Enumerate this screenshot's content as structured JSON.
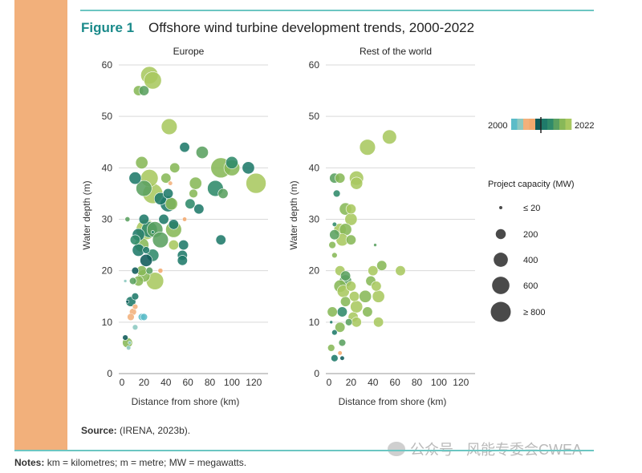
{
  "figure": {
    "label": "Figure 1",
    "title": "Offshore wind turbine development trends, 2000-2022"
  },
  "source": {
    "label": "Source:",
    "text": "(IRENA, 2023b)."
  },
  "notes": {
    "label": "Notes:",
    "text": "km = kilometres; m = metre; MW = megawatts."
  },
  "watermark": {
    "text": "公众号 · 风能专委会CWEA"
  },
  "colors": {
    "band": "#f2b07b",
    "rule": "#6cc6c2",
    "label": "#1a8a8a",
    "year_scale": [
      "#5bbcc8",
      "#8cc8c0",
      "#f2b07b",
      "#f2a86e",
      "#0f5a5a",
      "#1f7a6a",
      "#2f8a6a",
      "#5aa060",
      "#88b858",
      "#a8c860"
    ]
  },
  "legend": {
    "year_start": "2000",
    "year_end": "2022",
    "capacity_title": "Project capacity (MW)",
    "capacity_items": [
      {
        "label": "≤ 20",
        "mw": 20
      },
      {
        "label": "200",
        "mw": 200
      },
      {
        "label": "400",
        "mw": 400
      },
      {
        "label": "600",
        "mw": 600
      },
      {
        "label": "≥ 800",
        "mw": 800
      }
    ]
  },
  "chart_data": [
    {
      "type": "scatter",
      "title": "Europe",
      "xlabel": "Distance from shore (km)",
      "ylabel": "Water depth (m)",
      "xlim": [
        0,
        130
      ],
      "ylim": [
        0,
        60
      ],
      "xticks": [
        "0",
        "20",
        "40",
        "60",
        "80",
        "100",
        "120"
      ],
      "yticks": [
        "0",
        "10",
        "20",
        "30",
        "40",
        "50",
        "60"
      ],
      "grid": "horizontal",
      "points": [
        {
          "x": 25,
          "y": 58,
          "mw": 600,
          "year": 2021
        },
        {
          "x": 28,
          "y": 57,
          "mw": 600,
          "year": 2022
        },
        {
          "x": 15,
          "y": 55,
          "mw": 200,
          "year": 2019
        },
        {
          "x": 20,
          "y": 55,
          "mw": 200,
          "year": 2018
        },
        {
          "x": 43,
          "y": 48,
          "mw": 500,
          "year": 2021
        },
        {
          "x": 57,
          "y": 44,
          "mw": 200,
          "year": 2012
        },
        {
          "x": 73,
          "y": 43,
          "mw": 300,
          "year": 2016
        },
        {
          "x": 18,
          "y": 41,
          "mw": 300,
          "year": 2019
        },
        {
          "x": 100,
          "y": 41,
          "mw": 300,
          "year": 2014
        },
        {
          "x": 90,
          "y": 40,
          "mw": 800,
          "year": 2020
        },
        {
          "x": 100,
          "y": 40,
          "mw": 500,
          "year": 2019
        },
        {
          "x": 115,
          "y": 40,
          "mw": 300,
          "year": 2013
        },
        {
          "x": 48,
          "y": 40,
          "mw": 200,
          "year": 2020
        },
        {
          "x": 12,
          "y": 38,
          "mw": 300,
          "year": 2012
        },
        {
          "x": 40,
          "y": 38,
          "mw": 200,
          "year": 2020
        },
        {
          "x": 25,
          "y": 38,
          "mw": 600,
          "year": 2021
        },
        {
          "x": 122,
          "y": 37,
          "mw": 800,
          "year": 2021
        },
        {
          "x": 44,
          "y": 37,
          "mw": 40,
          "year": 2006
        },
        {
          "x": 67,
          "y": 37,
          "mw": 300,
          "year": 2020
        },
        {
          "x": 20,
          "y": 36,
          "mw": 500,
          "year": 2018
        },
        {
          "x": 28,
          "y": 35,
          "mw": 800,
          "year": 2021
        },
        {
          "x": 85,
          "y": 36,
          "mw": 500,
          "year": 2014
        },
        {
          "x": 92,
          "y": 35,
          "mw": 200,
          "year": 2016
        },
        {
          "x": 42,
          "y": 35,
          "mw": 200,
          "year": 2013
        },
        {
          "x": 65,
          "y": 35,
          "mw": 150,
          "year": 2019
        },
        {
          "x": 35,
          "y": 34,
          "mw": 300,
          "year": 2011
        },
        {
          "x": 42,
          "y": 33,
          "mw": 500,
          "year": 2012
        },
        {
          "x": 45,
          "y": 33,
          "mw": 300,
          "year": 2019
        },
        {
          "x": 62,
          "y": 33,
          "mw": 200,
          "year": 2014
        },
        {
          "x": 70,
          "y": 32,
          "mw": 200,
          "year": 2011
        },
        {
          "x": 5,
          "y": 30,
          "mw": 50,
          "year": 2018
        },
        {
          "x": 20,
          "y": 30,
          "mw": 200,
          "year": 2012
        },
        {
          "x": 38,
          "y": 30,
          "mw": 200,
          "year": 2012
        },
        {
          "x": 57,
          "y": 30,
          "mw": 40,
          "year": 2007
        },
        {
          "x": 47,
          "y": 29,
          "mw": 200,
          "year": 2013
        },
        {
          "x": 25,
          "y": 28,
          "mw": 500,
          "year": 2014
        },
        {
          "x": 30,
          "y": 28,
          "mw": 500,
          "year": 2016
        },
        {
          "x": 22,
          "y": 28,
          "mw": 800,
          "year": 2022
        },
        {
          "x": 28,
          "y": 27.5,
          "mw": 20,
          "year": 2014
        },
        {
          "x": 47,
          "y": 28,
          "mw": 500,
          "year": 2020
        },
        {
          "x": 15,
          "y": 27,
          "mw": 300,
          "year": 2013
        },
        {
          "x": 12,
          "y": 26,
          "mw": 200,
          "year": 2015
        },
        {
          "x": 35,
          "y": 26,
          "mw": 500,
          "year": 2017
        },
        {
          "x": 90,
          "y": 26,
          "mw": 200,
          "year": 2013
        },
        {
          "x": 18,
          "y": 25,
          "mw": 400,
          "year": 2019
        },
        {
          "x": 56,
          "y": 25,
          "mw": 200,
          "year": 2012
        },
        {
          "x": 47,
          "y": 25,
          "mw": 200,
          "year": 2021
        },
        {
          "x": 15,
          "y": 24,
          "mw": 300,
          "year": 2011
        },
        {
          "x": 22,
          "y": 24,
          "mw": 100,
          "year": 2013
        },
        {
          "x": 28,
          "y": 23,
          "mw": 300,
          "year": 2014
        },
        {
          "x": 55,
          "y": 23,
          "mw": 200,
          "year": 2013
        },
        {
          "x": 22,
          "y": 22,
          "mw": 300,
          "year": 2010
        },
        {
          "x": 55,
          "y": 22,
          "mw": 200,
          "year": 2012
        },
        {
          "x": 35,
          "y": 20,
          "mw": 50,
          "year": 2007
        },
        {
          "x": 12,
          "y": 20,
          "mw": 100,
          "year": 2010
        },
        {
          "x": 18,
          "y": 20,
          "mw": 200,
          "year": 2019
        },
        {
          "x": 25,
          "y": 20,
          "mw": 100,
          "year": 2017
        },
        {
          "x": 20,
          "y": 19,
          "mw": 300,
          "year": 2020
        },
        {
          "x": 30,
          "y": 18,
          "mw": 600,
          "year": 2021
        },
        {
          "x": 15,
          "y": 18,
          "mw": 200,
          "year": 2019
        },
        {
          "x": 10,
          "y": 18,
          "mw": 100,
          "year": 2016
        },
        {
          "x": 3,
          "y": 18,
          "mw": 20,
          "year": 2002
        },
        {
          "x": 12,
          "y": 15,
          "mw": 100,
          "year": 2011
        },
        {
          "x": 8,
          "y": 14,
          "mw": 200,
          "year": 2011
        },
        {
          "x": 5,
          "y": 14,
          "mw": 20,
          "year": 2010
        },
        {
          "x": 12,
          "y": 13,
          "mw": 60,
          "year": 2006
        },
        {
          "x": 10,
          "y": 12,
          "mw": 100,
          "year": 2005
        },
        {
          "x": 8,
          "y": 11,
          "mw": 100,
          "year": 2004
        },
        {
          "x": 18,
          "y": 11,
          "mw": 100,
          "year": 2001
        },
        {
          "x": 20,
          "y": 11,
          "mw": 100,
          "year": 2000
        },
        {
          "x": 12,
          "y": 9,
          "mw": 60,
          "year": 2002
        },
        {
          "x": 3,
          "y": 7,
          "mw": 60,
          "year": 2010
        },
        {
          "x": 5,
          "y": 6,
          "mw": 200,
          "year": 2019
        },
        {
          "x": 7,
          "y": 6,
          "mw": 20,
          "year": 2003
        },
        {
          "x": 6,
          "y": 5,
          "mw": 40,
          "year": 2002
        }
      ]
    },
    {
      "type": "scatter",
      "title": "Rest of the world",
      "xlabel": "Distance from shore (km)",
      "ylabel": "Water depth (m)",
      "xlim": [
        0,
        130
      ],
      "ylim": [
        0,
        60
      ],
      "xticks": [
        "0",
        "20",
        "40",
        "60",
        "80",
        "100",
        "120"
      ],
      "yticks": [
        "0",
        "10",
        "20",
        "30",
        "40",
        "50",
        "60"
      ],
      "grid": "horizontal",
      "points": [
        {
          "x": 55,
          "y": 46,
          "mw": 400,
          "year": 2022
        },
        {
          "x": 35,
          "y": 44,
          "mw": 500,
          "year": 2021
        },
        {
          "x": 5,
          "y": 38,
          "mw": 200,
          "year": 2016
        },
        {
          "x": 10,
          "y": 38,
          "mw": 200,
          "year": 2019
        },
        {
          "x": 25,
          "y": 38,
          "mw": 400,
          "year": 2021
        },
        {
          "x": 25,
          "y": 37,
          "mw": 300,
          "year": 2021
        },
        {
          "x": 7,
          "y": 35,
          "mw": 100,
          "year": 2014
        },
        {
          "x": 15,
          "y": 32,
          "mw": 300,
          "year": 2020
        },
        {
          "x": 20,
          "y": 32,
          "mw": 200,
          "year": 2021
        },
        {
          "x": 20,
          "y": 30,
          "mw": 300,
          "year": 2021
        },
        {
          "x": 5,
          "y": 29,
          "mw": 40,
          "year": 2015
        },
        {
          "x": 10,
          "y": 28,
          "mw": 300,
          "year": 2021
        },
        {
          "x": 15,
          "y": 28,
          "mw": 300,
          "year": 2020
        },
        {
          "x": 5,
          "y": 27,
          "mw": 200,
          "year": 2018
        },
        {
          "x": 12,
          "y": 26,
          "mw": 300,
          "year": 2021
        },
        {
          "x": 20,
          "y": 26,
          "mw": 200,
          "year": 2020
        },
        {
          "x": 3,
          "y": 25,
          "mw": 100,
          "year": 2019
        },
        {
          "x": 42,
          "y": 25,
          "mw": 20,
          "year": 2017
        },
        {
          "x": 5,
          "y": 23,
          "mw": 60,
          "year": 2020
        },
        {
          "x": 48,
          "y": 21,
          "mw": 200,
          "year": 2020
        },
        {
          "x": 10,
          "y": 20,
          "mw": 200,
          "year": 2021
        },
        {
          "x": 40,
          "y": 20,
          "mw": 200,
          "year": 2021
        },
        {
          "x": 65,
          "y": 20,
          "mw": 200,
          "year": 2022
        },
        {
          "x": 15,
          "y": 19,
          "mw": 200,
          "year": 2016
        },
        {
          "x": 15,
          "y": 18,
          "mw": 300,
          "year": 2018
        },
        {
          "x": 38,
          "y": 18,
          "mw": 200,
          "year": 2020
        },
        {
          "x": 10,
          "y": 17,
          "mw": 300,
          "year": 2020
        },
        {
          "x": 20,
          "y": 17,
          "mw": 200,
          "year": 2021
        },
        {
          "x": 43,
          "y": 17,
          "mw": 200,
          "year": 2021
        },
        {
          "x": 13,
          "y": 16,
          "mw": 300,
          "year": 2021
        },
        {
          "x": 23,
          "y": 15,
          "mw": 200,
          "year": 2021
        },
        {
          "x": 33,
          "y": 15,
          "mw": 300,
          "year": 2020
        },
        {
          "x": 45,
          "y": 15,
          "mw": 300,
          "year": 2021
        },
        {
          "x": 15,
          "y": 14,
          "mw": 200,
          "year": 2019
        },
        {
          "x": 25,
          "y": 13,
          "mw": 300,
          "year": 2021
        },
        {
          "x": 12,
          "y": 12,
          "mw": 200,
          "year": 2014
        },
        {
          "x": 3,
          "y": 12,
          "mw": 200,
          "year": 2020
        },
        {
          "x": 35,
          "y": 12,
          "mw": 200,
          "year": 2020
        },
        {
          "x": 22,
          "y": 11,
          "mw": 200,
          "year": 2021
        },
        {
          "x": 18,
          "y": 10,
          "mw": 100,
          "year": 2016
        },
        {
          "x": 25,
          "y": 10,
          "mw": 200,
          "year": 2021
        },
        {
          "x": 45,
          "y": 10,
          "mw": 200,
          "year": 2022
        },
        {
          "x": 2,
          "y": 10,
          "mw": 20,
          "year": 2012
        },
        {
          "x": 10,
          "y": 9,
          "mw": 200,
          "year": 2020
        },
        {
          "x": 5,
          "y": 8,
          "mw": 60,
          "year": 2013
        },
        {
          "x": 12,
          "y": 6,
          "mw": 100,
          "year": 2016
        },
        {
          "x": 2,
          "y": 5,
          "mw": 100,
          "year": 2019
        },
        {
          "x": 10,
          "y": 4,
          "mw": 40,
          "year": 2008
        },
        {
          "x": 5,
          "y": 3,
          "mw": 100,
          "year": 2012
        },
        {
          "x": 12,
          "y": 3,
          "mw": 40,
          "year": 2010
        }
      ]
    }
  ]
}
